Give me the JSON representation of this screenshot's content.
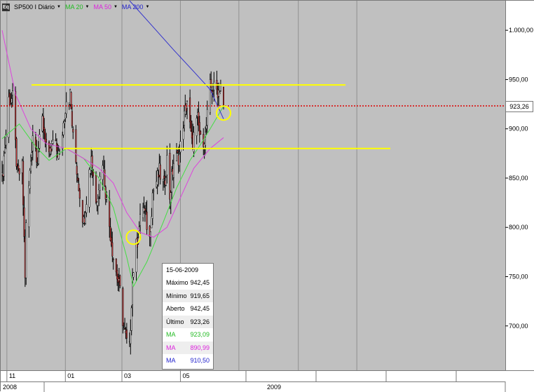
{
  "toolbar": {
    "symbol": "SP500 I Diário",
    "logo_text": "Eq",
    "ma_items": [
      {
        "label": "MA 20",
        "color": "#22bb22"
      },
      {
        "label": "MA 50",
        "color": "#dd22dd"
      },
      {
        "label": "MA 200",
        "color": "#2222cc"
      }
    ]
  },
  "colors": {
    "background": "#c0c0c0",
    "candle_up": "#ffffff",
    "candle_down": "#d04040",
    "wick": "#000000",
    "ma20": "#44dd44",
    "ma50": "#dd44dd",
    "ma200": "#3333cc",
    "trendline": "#ffff00",
    "last_price_line": "#dd0000",
    "grid": "#909090"
  },
  "tooltip": {
    "date": "15-06-2009",
    "rows": [
      {
        "label": "Máximo",
        "value": "942,45",
        "color": "#000000"
      },
      {
        "label": "Mínimo",
        "value": "919,65",
        "color": "#000000"
      },
      {
        "label": "Aberto",
        "value": "942,45",
        "color": "#000000"
      },
      {
        "label": "Último",
        "value": "923,26",
        "color": "#000000"
      },
      {
        "label": "MA",
        "value": "923,09",
        "color": "#22bb22"
      },
      {
        "label": "MA",
        "value": "890,99",
        "color": "#dd22dd"
      },
      {
        "label": "MA",
        "value": "910,50",
        "color": "#2222cc"
      }
    ]
  },
  "last_price_label": "923,26",
  "chart_data": {
    "type": "candlestick",
    "title": "SP500 I Diário",
    "xlabel": "",
    "ylabel": "",
    "ylim": [
      655,
      1030
    ],
    "y_ticks": [
      {
        "value": 1000,
        "label": "1.000,00"
      },
      {
        "value": 950,
        "label": "950,00"
      },
      {
        "value": 900,
        "label": "900,00"
      },
      {
        "value": 850,
        "label": "850,00"
      },
      {
        "value": 800,
        "label": "800,00"
      },
      {
        "value": 750,
        "label": "750,00"
      },
      {
        "value": 700,
        "label": "700,00"
      }
    ],
    "x_month_labels": [
      "11",
      "01",
      "03",
      "05"
    ],
    "x_year_labels": [
      "2008",
      "2009"
    ],
    "start_date": "2008-10-27",
    "end_date": "2009-06-15",
    "last_price": 923.26,
    "resistance_level": 944.5,
    "support_level": 880,
    "highlight_circles": [
      {
        "date": "2009-03-13",
        "value": 790
      },
      {
        "date": "2009-06-15",
        "value": 916
      }
    ],
    "closes": [
      {
        "date": "2008-10-27",
        "close": 848
      },
      {
        "date": "2008-11-03",
        "close": 930
      },
      {
        "date": "2008-11-07",
        "close": 930
      },
      {
        "date": "2008-11-12",
        "close": 852
      },
      {
        "date": "2008-11-17",
        "close": 860
      },
      {
        "date": "2008-11-20",
        "close": 752
      },
      {
        "date": "2008-11-21",
        "close": 800
      },
      {
        "date": "2008-11-28",
        "close": 896
      },
      {
        "date": "2008-12-03",
        "close": 870
      },
      {
        "date": "2008-12-08",
        "close": 909
      },
      {
        "date": "2008-12-15",
        "close": 868
      },
      {
        "date": "2008-12-19",
        "close": 887
      },
      {
        "date": "2008-12-26",
        "close": 872
      },
      {
        "date": "2009-01-02",
        "close": 931
      },
      {
        "date": "2009-01-06",
        "close": 934
      },
      {
        "date": "2009-01-09",
        "close": 890
      },
      {
        "date": "2009-01-15",
        "close": 843
      },
      {
        "date": "2009-01-20",
        "close": 805
      },
      {
        "date": "2009-01-28",
        "close": 874
      },
      {
        "date": "2009-02-02",
        "close": 825
      },
      {
        "date": "2009-02-09",
        "close": 869
      },
      {
        "date": "2009-02-13",
        "close": 826
      },
      {
        "date": "2009-02-20",
        "close": 770
      },
      {
        "date": "2009-02-27",
        "close": 735
      },
      {
        "date": "2009-03-03",
        "close": 697
      },
      {
        "date": "2009-03-06",
        "close": 683
      },
      {
        "date": "2009-03-09",
        "close": 677
      },
      {
        "date": "2009-03-12",
        "close": 751
      },
      {
        "date": "2009-03-18",
        "close": 795
      },
      {
        "date": "2009-03-23",
        "close": 823
      },
      {
        "date": "2009-03-30",
        "close": 788
      },
      {
        "date": "2009-04-02",
        "close": 835
      },
      {
        "date": "2009-04-09",
        "close": 856
      },
      {
        "date": "2009-04-14",
        "close": 841
      },
      {
        "date": "2009-04-17",
        "close": 869
      },
      {
        "date": "2009-04-20",
        "close": 832
      },
      {
        "date": "2009-04-24",
        "close": 866
      },
      {
        "date": "2009-04-30",
        "close": 873
      },
      {
        "date": "2009-05-04",
        "close": 907
      },
      {
        "date": "2009-05-08",
        "close": 929
      },
      {
        "date": "2009-05-13",
        "close": 884
      },
      {
        "date": "2009-05-19",
        "close": 909
      },
      {
        "date": "2009-05-22",
        "close": 887
      },
      {
        "date": "2009-05-27",
        "close": 893
      },
      {
        "date": "2009-06-01",
        "close": 942
      },
      {
        "date": "2009-06-05",
        "close": 940
      },
      {
        "date": "2009-06-10",
        "close": 939
      },
      {
        "date": "2009-06-12",
        "close": 946
      },
      {
        "date": "2009-06-15",
        "close": 923
      }
    ],
    "ma20": [
      {
        "date": "2008-10-27",
        "value": 890
      },
      {
        "date": "2008-11-14",
        "value": 905
      },
      {
        "date": "2008-12-01",
        "value": 882
      },
      {
        "date": "2008-12-15",
        "value": 868
      },
      {
        "date": "2009-01-02",
        "value": 880
      },
      {
        "date": "2009-01-20",
        "value": 870
      },
      {
        "date": "2009-02-05",
        "value": 850
      },
      {
        "date": "2009-02-20",
        "value": 820
      },
      {
        "date": "2009-03-06",
        "value": 770
      },
      {
        "date": "2009-03-13",
        "value": 740
      },
      {
        "date": "2009-03-27",
        "value": 765
      },
      {
        "date": "2009-04-13",
        "value": 805
      },
      {
        "date": "2009-04-27",
        "value": 840
      },
      {
        "date": "2009-05-11",
        "value": 868
      },
      {
        "date": "2009-05-26",
        "value": 890
      },
      {
        "date": "2009-06-15",
        "value": 923
      }
    ],
    "ma50": [
      {
        "date": "2008-10-27",
        "value": 1000
      },
      {
        "date": "2008-11-10",
        "value": 935
      },
      {
        "date": "2008-11-26",
        "value": 900
      },
      {
        "date": "2008-12-12",
        "value": 885
      },
      {
        "date": "2009-01-02",
        "value": 880
      },
      {
        "date": "2009-01-20",
        "value": 870
      },
      {
        "date": "2009-02-05",
        "value": 860
      },
      {
        "date": "2009-02-20",
        "value": 845
      },
      {
        "date": "2009-03-06",
        "value": 815
      },
      {
        "date": "2009-03-20",
        "value": 795
      },
      {
        "date": "2009-04-03",
        "value": 790
      },
      {
        "date": "2009-04-17",
        "value": 800
      },
      {
        "date": "2009-05-01",
        "value": 830
      },
      {
        "date": "2009-05-15",
        "value": 860
      },
      {
        "date": "2009-06-01",
        "value": 880
      },
      {
        "date": "2009-06-15",
        "value": 891
      }
    ],
    "ma200": [
      {
        "date": "2009-03-09",
        "value": 1030
      },
      {
        "date": "2009-04-01",
        "value": 1005
      },
      {
        "date": "2009-04-24",
        "value": 980
      },
      {
        "date": "2009-05-15",
        "value": 958
      },
      {
        "date": "2009-06-01",
        "value": 940
      },
      {
        "date": "2009-06-15",
        "value": 910
      }
    ]
  }
}
